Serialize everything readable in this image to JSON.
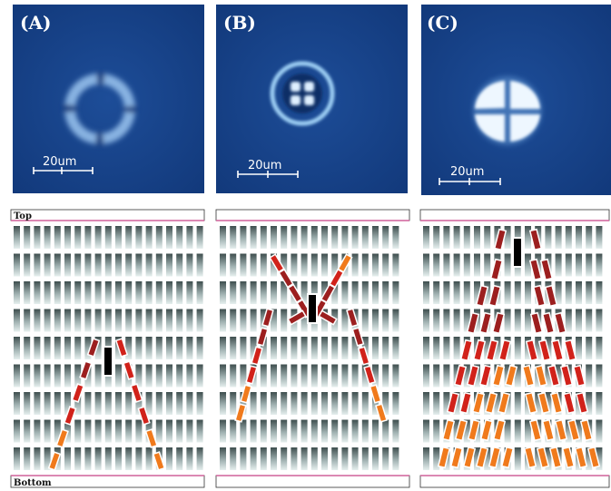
{
  "figure": {
    "panels": [
      {
        "label": "(A)",
        "scale_text": "20um",
        "pattern": "ring"
      },
      {
        "label": "(B)",
        "scale_text": "20um",
        "pattern": "ring-cross"
      },
      {
        "label": "(C)",
        "scale_text": "20um",
        "pattern": "bright-cross"
      }
    ],
    "strips": {
      "top_label": "Top",
      "bottom_label": "Bottom"
    },
    "colors": {
      "micro_background": "#17438a",
      "micro_glow": "#d9ecff",
      "strip_line": "#d0609a",
      "lc_bar_dark": "#3e4e4e",
      "lc_bar_light": "#e6efee",
      "director_red": "#d1221a",
      "director_dark_red": "#9c1f1f",
      "director_orange": "#f07a1c",
      "defect_core": "#000000"
    }
  }
}
